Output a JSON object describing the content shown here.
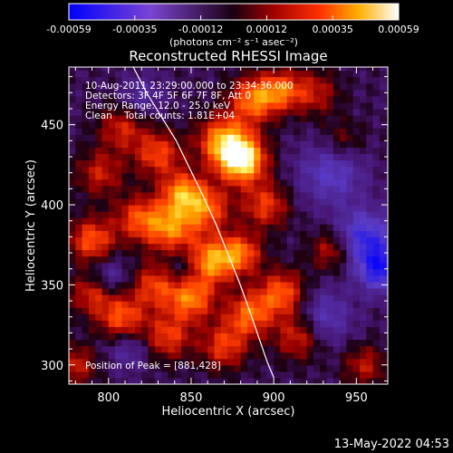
{
  "chart_data": {
    "type": "heatmap",
    "title": "Reconstructed RHESSI Image",
    "xlabel": "Heliocentric X (arcsec)",
    "ylabel": "Heliocentric Y (arcsec)",
    "xlim": [
      776,
      969
    ],
    "ylim": [
      288,
      486
    ],
    "x_ticks": [
      800,
      850,
      900,
      950
    ],
    "y_ticks": [
      300,
      350,
      400,
      450
    ],
    "colorbar": {
      "min": -0.00059,
      "max": 0.00059,
      "ticks": [
        "-0.00059",
        "-0.00035",
        "-0.00012",
        "0.00012",
        "0.00035",
        "0.00059"
      ],
      "units_label": "(photons cm⁻² s⁻¹ asec⁻²)"
    },
    "annotations": [
      "10-Aug-2011 23:29:00.000 to 23:34:36.000",
      "Detectors: 3F 4F 5F 6F 7F 8F, Att 0",
      "Energy Range: 12.0 - 25.0 keV",
      "Clean    Total counts: 1.81E+04"
    ],
    "peak_label": "Position of Peak = [881,428]",
    "limb_curve": {
      "x": [
        815,
        823,
        832,
        841,
        849,
        857,
        865,
        872,
        879,
        885,
        891,
        896,
        900
      ],
      "y": [
        486,
        470,
        455,
        440,
        423,
        406,
        388,
        370,
        352,
        335,
        317,
        302,
        292
      ]
    },
    "pixel_size_arcsec": 4,
    "blobs": [
      {
        "x": 881,
        "y": 428,
        "amp": 0.00059,
        "sigma": 10
      },
      {
        "x": 870,
        "y": 440,
        "amp": 0.00045,
        "sigma": 11
      },
      {
        "x": 888,
        "y": 466,
        "amp": 0.0004,
        "sigma": 10
      },
      {
        "x": 905,
        "y": 472,
        "amp": 0.00032,
        "sigma": 9
      },
      {
        "x": 925,
        "y": 470,
        "amp": 0.00022,
        "sigma": 10
      },
      {
        "x": 830,
        "y": 432,
        "amp": 0.00032,
        "sigma": 10
      },
      {
        "x": 808,
        "y": 448,
        "amp": 0.00025,
        "sigma": 10
      },
      {
        "x": 795,
        "y": 420,
        "amp": 0.00024,
        "sigma": 10
      },
      {
        "x": 845,
        "y": 408,
        "amp": 0.0004,
        "sigma": 9
      },
      {
        "x": 860,
        "y": 398,
        "amp": 0.00034,
        "sigma": 10
      },
      {
        "x": 838,
        "y": 386,
        "amp": 0.0004,
        "sigma": 11
      },
      {
        "x": 818,
        "y": 392,
        "amp": 0.0003,
        "sigma": 10
      },
      {
        "x": 790,
        "y": 378,
        "amp": 0.00035,
        "sigma": 10
      },
      {
        "x": 862,
        "y": 365,
        "amp": 0.00044,
        "sigma": 10
      },
      {
        "x": 880,
        "y": 370,
        "amp": 0.00036,
        "sigma": 9
      },
      {
        "x": 895,
        "y": 400,
        "amp": 0.0003,
        "sigma": 10
      },
      {
        "x": 905,
        "y": 345,
        "amp": 0.00036,
        "sigma": 10
      },
      {
        "x": 885,
        "y": 332,
        "amp": 0.00036,
        "sigma": 10
      },
      {
        "x": 850,
        "y": 342,
        "amp": 0.0004,
        "sigma": 10
      },
      {
        "x": 828,
        "y": 350,
        "amp": 0.0003,
        "sigma": 10
      },
      {
        "x": 808,
        "y": 330,
        "amp": 0.00035,
        "sigma": 10
      },
      {
        "x": 790,
        "y": 345,
        "amp": 0.00028,
        "sigma": 9
      },
      {
        "x": 836,
        "y": 318,
        "amp": 0.0003,
        "sigma": 10
      },
      {
        "x": 870,
        "y": 312,
        "amp": 0.0003,
        "sigma": 10
      },
      {
        "x": 915,
        "y": 318,
        "amp": 0.00028,
        "sigma": 10
      },
      {
        "x": 935,
        "y": 372,
        "amp": 0.00024,
        "sigma": 9
      },
      {
        "x": 942,
        "y": 440,
        "amp": 0.00016,
        "sigma": 9
      },
      {
        "x": 955,
        "y": 300,
        "amp": 0.00022,
        "sigma": 9
      },
      {
        "x": 780,
        "y": 300,
        "amp": 0.00024,
        "sigma": 9
      },
      {
        "x": 955,
        "y": 380,
        "amp": -0.00035,
        "sigma": 12
      },
      {
        "x": 965,
        "y": 360,
        "amp": -0.0004,
        "sigma": 10
      },
      {
        "x": 935,
        "y": 420,
        "amp": -0.00025,
        "sigma": 14
      },
      {
        "x": 930,
        "y": 330,
        "amp": -0.00022,
        "sigma": 12
      },
      {
        "x": 800,
        "y": 355,
        "amp": -0.00018,
        "sigma": 9
      },
      {
        "x": 812,
        "y": 310,
        "amp": -0.00016,
        "sigma": 9
      },
      {
        "x": 845,
        "y": 360,
        "amp": -0.00015,
        "sigma": 8
      },
      {
        "x": 820,
        "y": 468,
        "amp": -0.00016,
        "sigma": 9
      }
    ]
  },
  "footer": {
    "timestamp": "13-May-2022 04:53"
  }
}
